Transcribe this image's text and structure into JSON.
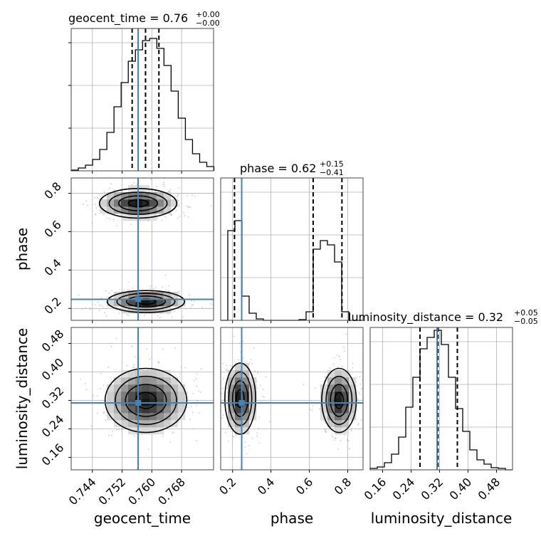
{
  "colors": {
    "truth": "#4682b4",
    "hist": "#000000",
    "grid": "#b0b0b0",
    "frame": "#000000"
  },
  "chart_data": {
    "type": "corner",
    "parameters": [
      "geocent_time",
      "phase",
      "luminosity_distance"
    ],
    "truths": {
      "geocent_time": 0.7563,
      "phase": 0.2475,
      "luminosity_distance": 0.3131
    },
    "titles": [
      {
        "param": "geocent_time",
        "main": "geocent_time = 0.76",
        "sup": "+0.00",
        "sub": "−0.00"
      },
      {
        "param": "phase",
        "main": "phase = 0.62",
        "sup": "+0.15",
        "sub": "−0.41"
      },
      {
        "param": "luminosity_distance",
        "main": "luminosity_distance = 0.32",
        "sup": "+0.05",
        "sub": "−0.05"
      }
    ],
    "axis_labels": {
      "geocent_time": "geocent_time",
      "phase": "phase",
      "luminosity_distance": "luminosity_distance"
    },
    "ranges": {
      "geocent_time": [
        0.7383,
        0.7766
      ],
      "phase": [
        0.138,
        0.88
      ],
      "luminosity_distance": [
        0.125,
        0.525
      ]
    },
    "ticks": {
      "geocent_time": {
        "values": [
          0.744,
          0.752,
          0.76,
          0.768
        ],
        "labels": [
          "0.744",
          "0.752",
          "0.760",
          "0.768"
        ]
      },
      "phase_x": {
        "values": [
          0.2,
          0.4,
          0.6,
          0.8
        ],
        "labels": [
          "0.2",
          "0.4",
          "0.6",
          "0.8"
        ]
      },
      "phase_y": {
        "values": [
          0.2,
          0.4,
          0.6,
          0.8
        ],
        "labels": [
          "0.2",
          "0.4",
          "0.6",
          "0.8"
        ]
      },
      "luminosity_distance_x": {
        "values": [
          0.16,
          0.24,
          0.32,
          0.4,
          0.48
        ],
        "labels": [
          "0.16",
          "0.24",
          "0.32",
          "0.40",
          "0.48"
        ]
      },
      "luminosity_distance_y": {
        "values": [
          0.16,
          0.24,
          0.32,
          0.4,
          0.48
        ],
        "labels": [
          "0.16",
          "0.24",
          "0.32",
          "0.40",
          "0.48"
        ]
      }
    },
    "histograms": {
      "geocent_time": {
        "edges_start": 0.7383,
        "bin_width": 0.00192,
        "heights": [
          0.005,
          0.02,
          0.04,
          0.08,
          0.15,
          0.27,
          0.45,
          0.62,
          0.77,
          0.85,
          0.915,
          0.93,
          0.86,
          0.74,
          0.56,
          0.37,
          0.22,
          0.12,
          0.06,
          0.03
        ],
        "quantiles": [
          0.7547,
          0.7583,
          0.7619
        ]
      },
      "phase": {
        "edges_start": 0.138,
        "bin_width": 0.0371,
        "heights": [
          0.0,
          0.63,
          0.7,
          0.17,
          0.05,
          0.01,
          0.0,
          0.0,
          0.0,
          0.0,
          0.0,
          0.005,
          0.06,
          0.5,
          0.56,
          0.53,
          0.41,
          0.06,
          0.0,
          0.0
        ],
        "quantiles": [
          0.21,
          0.62,
          0.77
        ]
      },
      "luminosity_distance": {
        "edges_start": 0.125,
        "bin_width": 0.02,
        "heights": [
          0.01,
          0.02,
          0.05,
          0.11,
          0.23,
          0.44,
          0.65,
          0.85,
          0.93,
          0.98,
          0.88,
          0.65,
          0.43,
          0.27,
          0.14,
          0.07,
          0.04,
          0.015,
          0.01,
          0.0
        ],
        "quantiles": [
          0.265,
          0.3155,
          0.37
        ]
      }
    },
    "density_2d": [
      {
        "x": "geocent_time",
        "y": "phase",
        "modes": [
          {
            "cx": 0.7563,
            "cy": 0.748,
            "sx": 0.0052,
            "sy": 0.0385
          },
          {
            "cx": 0.7584,
            "cy": 0.236,
            "sx": 0.0052,
            "sy": 0.0285
          }
        ]
      },
      {
        "x": "geocent_time",
        "y": "luminosity_distance",
        "modes": [
          {
            "cx": 0.7584,
            "cy": 0.32,
            "sx": 0.0055,
            "sy": 0.045
          }
        ]
      },
      {
        "x": "phase",
        "y": "luminosity_distance",
        "modes": [
          {
            "cx": 0.24,
            "cy": 0.325,
            "sx": 0.04,
            "sy": 0.05
          },
          {
            "cx": 0.755,
            "cy": 0.32,
            "sx": 0.045,
            "sy": 0.045
          }
        ]
      }
    ],
    "grid": true,
    "legend": "none"
  }
}
